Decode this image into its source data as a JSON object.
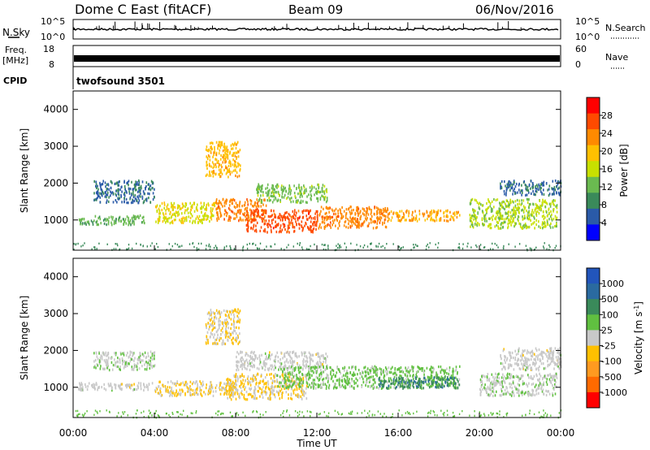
{
  "header": {
    "station": "Dome C East (fitACF)",
    "beam": "Beam 09",
    "date": "06/Nov/2016"
  },
  "strips": {
    "nsky_label": "N.Sky",
    "nsky_ticks": [
      "10^5",
      "10^0"
    ],
    "nsearch_label": "N.Search",
    "nsearch_ticks": [
      "10^5",
      "10^0"
    ],
    "freq_label": "Freq.",
    "freq_unit": "[MHz]",
    "freq_ticks": [
      "18",
      "8"
    ],
    "nave_label": "Nave",
    "nave_ticks": [
      "60",
      "0"
    ],
    "cpid_label": "CPID",
    "cpid_value": "twofsound 3501"
  },
  "axes": {
    "ylabel": "Slant Range [km]",
    "xlabel": "Time UT",
    "yticks": [
      "4000",
      "3000",
      "2000",
      "1000"
    ],
    "xticks": [
      "00:00",
      "04:00",
      "08:00",
      "12:00",
      "16:00",
      "20:00",
      "00:00"
    ]
  },
  "colorbars": {
    "power": {
      "label": "Power [dB]",
      "ticks": [
        "28",
        "24",
        "20",
        "16",
        "12",
        "8",
        "4"
      ],
      "colors": [
        "#ff0000",
        "#ff4a00",
        "#ff8a00",
        "#ffc000",
        "#c8e000",
        "#6aba50",
        "#3a8a5a",
        "#2a5aa8",
        "#0000ff"
      ]
    },
    "velocity": {
      "label": "Velocity [m s",
      "label_sup": "-1",
      "label_end": "]",
      "ticks": [
        "1000",
        "500",
        "100",
        "25",
        "-25",
        "-100",
        "-500",
        "-1000"
      ],
      "colors": [
        "#2255bb",
        "#2a6aa0",
        "#3a8a5a",
        "#60c040",
        "#c8c8c8",
        "#ffc000",
        "#ff9a20",
        "#ff6a00",
        "#ff0000"
      ]
    }
  },
  "chart_data": [
    {
      "type": "line",
      "name": "N.Sky / N.Search",
      "title": "Dome C East (fitACF)",
      "x": [
        "00:00",
        "02:00",
        "04:00",
        "06:00",
        "08:00",
        "10:00",
        "12:00",
        "14:00",
        "16:00",
        "18:00",
        "20:00",
        "22:00",
        "24:00"
      ],
      "ylim": [
        1,
        100000
      ]
    },
    {
      "type": "heatmap",
      "name": "power",
      "xlabel": "Time UT",
      "ylabel": "Slant Range [km]",
      "xlim": [
        "00:00",
        "24:00"
      ],
      "ylim": [
        180,
        4500
      ],
      "color_range": [
        0,
        30
      ],
      "colorbar_label": "Power [dB]",
      "blobs": [
        {
          "t": [
            0.2,
            3.5
          ],
          "r": [
            900,
            1150
          ],
          "v": 11
        },
        {
          "t": [
            1.0,
            4.0
          ],
          "r": [
            1500,
            2100
          ],
          "v": 6
        },
        {
          "t": [
            4.0,
            7.0
          ],
          "r": [
            950,
            1500
          ],
          "v": 16
        },
        {
          "t": [
            6.5,
            8.2
          ],
          "r": [
            2200,
            3150
          ],
          "v": 19
        },
        {
          "t": [
            7.0,
            9.5
          ],
          "r": [
            1000,
            1600
          ],
          "v": 22
        },
        {
          "t": [
            8.5,
            12.0
          ],
          "r": [
            700,
            1300
          ],
          "v": 25
        },
        {
          "t": [
            9.0,
            12.5
          ],
          "r": [
            1500,
            2000
          ],
          "v": 12
        },
        {
          "t": [
            12.0,
            15.5
          ],
          "r": [
            800,
            1400
          ],
          "v": 22
        },
        {
          "t": [
            15.5,
            19.0
          ],
          "r": [
            1000,
            1300
          ],
          "v": 20
        },
        {
          "t": [
            19.5,
            23.8
          ],
          "r": [
            800,
            1600
          ],
          "v": 14
        },
        {
          "t": [
            21.0,
            24.0
          ],
          "r": [
            1700,
            2100
          ],
          "v": 6
        }
      ]
    },
    {
      "type": "heatmap",
      "name": "velocity",
      "xlabel": "Time UT",
      "ylabel": "Slant Range [km]",
      "xlim": [
        "00:00",
        "24:00"
      ],
      "ylim": [
        180,
        4500
      ],
      "color_range": [
        -1000,
        1000
      ],
      "colorbar_label": "Velocity [m s-1]",
      "blobs": [
        {
          "t": [
            0.2,
            4.0
          ],
          "r": [
            950,
            1150
          ],
          "v": 0
        },
        {
          "t": [
            1.0,
            4.0
          ],
          "r": [
            1500,
            2000
          ],
          "v": 60
        },
        {
          "t": [
            4.0,
            8.0
          ],
          "r": [
            800,
            1200
          ],
          "v": -120
        },
        {
          "t": [
            6.5,
            8.2
          ],
          "r": [
            2200,
            3150
          ],
          "v": -120
        },
        {
          "t": [
            7.5,
            11.5
          ],
          "r": [
            700,
            1400
          ],
          "v": -120
        },
        {
          "t": [
            8.0,
            12.5
          ],
          "r": [
            1500,
            2000
          ],
          "v": 0
        },
        {
          "t": [
            10.0,
            19.0
          ],
          "r": [
            1000,
            1600
          ],
          "v": 180
        },
        {
          "t": [
            15.0,
            19.0
          ],
          "r": [
            1000,
            1300
          ],
          "v": 500
        },
        {
          "t": [
            20.0,
            23.8
          ],
          "r": [
            800,
            1400
          ],
          "v": 60
        },
        {
          "t": [
            21.0,
            24.0
          ],
          "r": [
            1500,
            2100
          ],
          "v": 0
        }
      ]
    }
  ]
}
